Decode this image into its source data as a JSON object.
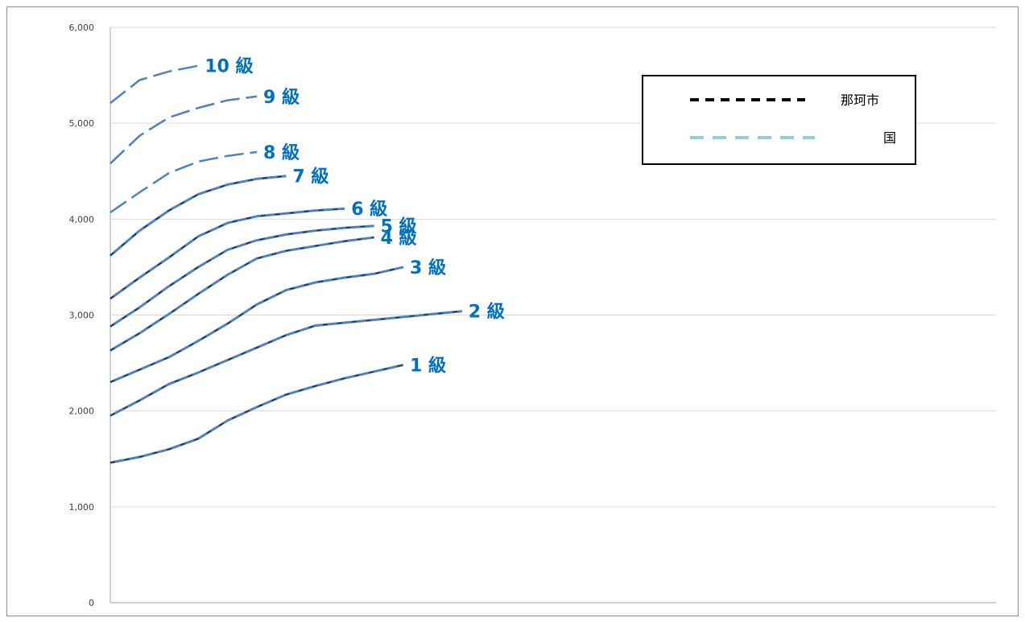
{
  "chart_data": {
    "type": "line",
    "title": "",
    "xlabel": "",
    "ylabel": "",
    "ylim": [
      0,
      6000
    ],
    "yticks": [
      "0",
      "1,000",
      "2,000",
      "3,000",
      "4,000",
      "5,000",
      "6,000"
    ],
    "grid": "horizontal",
    "legend_position": "top-right",
    "legend": [
      {
        "label": "那珂市",
        "color": "#000000",
        "style": "dashed"
      },
      {
        "label": "国",
        "color": "#92cddc",
        "style": "dashed"
      }
    ],
    "colors": {
      "line": "#4f81bd",
      "label": "#0070c0",
      "grid": "#d9d9d9",
      "axis": "#a6a6a6"
    },
    "series": [
      {
        "name": "1 級",
        "values": [
          1460,
          1520,
          1600,
          1710,
          1900,
          2040,
          2170,
          2260,
          2340,
          2410,
          2480
        ]
      },
      {
        "name": "2 級",
        "values": [
          1950,
          2110,
          2280,
          2400,
          2530,
          2660,
          2790,
          2890,
          2920,
          2950,
          2980,
          3010,
          3040
        ]
      },
      {
        "name": "3 級",
        "values": [
          2300,
          2430,
          2560,
          2730,
          2910,
          3110,
          3260,
          3340,
          3390,
          3430,
          3500
        ]
      },
      {
        "name": "4 級",
        "values": [
          2630,
          2810,
          3010,
          3220,
          3420,
          3590,
          3670,
          3720,
          3770,
          3810
        ]
      },
      {
        "name": "5 級",
        "values": [
          2880,
          3080,
          3300,
          3500,
          3680,
          3780,
          3840,
          3880,
          3910,
          3930
        ]
      },
      {
        "name": "6 級",
        "values": [
          3170,
          3390,
          3600,
          3820,
          3960,
          4030,
          4060,
          4090,
          4110
        ]
      },
      {
        "name": "7 級",
        "values": [
          3620,
          3880,
          4090,
          4260,
          4360,
          4420,
          4450
        ]
      },
      {
        "name": "8 級",
        "values": [
          4070,
          4280,
          4480,
          4600,
          4660,
          4700
        ]
      },
      {
        "name": "9 級",
        "values": [
          4580,
          4870,
          5060,
          5160,
          5240,
          5280
        ]
      },
      {
        "name": "10 級",
        "values": [
          5210,
          5450,
          5540,
          5600
        ]
      }
    ]
  }
}
